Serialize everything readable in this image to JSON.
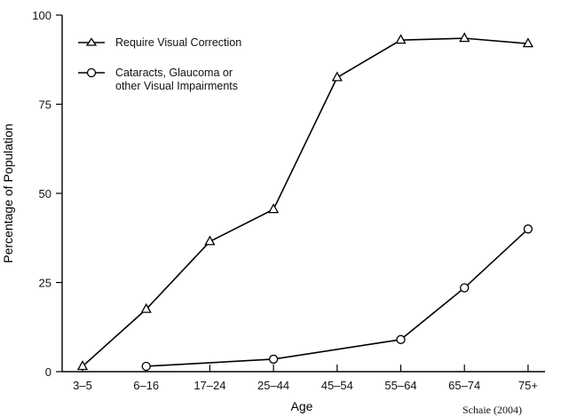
{
  "chart_data": {
    "type": "line",
    "xlabel": "Age",
    "ylabel": "Percentage of Population",
    "categories": [
      "3–5",
      "6–16",
      "17–24",
      "25–44",
      "45–54",
      "55–64",
      "65–74",
      "75+"
    ],
    "ylim": [
      0,
      100
    ],
    "yticks": [
      0,
      25,
      50,
      75,
      100
    ],
    "grid": false,
    "legend_position": "top-left",
    "series": [
      {
        "name": "Require Visual Correction",
        "marker": "triangle",
        "values": [
          1.5,
          17.5,
          36.5,
          45.5,
          82.5,
          93,
          93.5,
          92
        ]
      },
      {
        "name": "Cataracts, Glaucoma or other Visual Impairments",
        "name_lines": [
          "Cataracts, Glaucoma or",
          "other Visual Impairments"
        ],
        "marker": "circle",
        "values": [
          null,
          1.5,
          null,
          3.5,
          null,
          9,
          23.5,
          40
        ]
      }
    ],
    "annotation": "Schaie (2004)"
  }
}
